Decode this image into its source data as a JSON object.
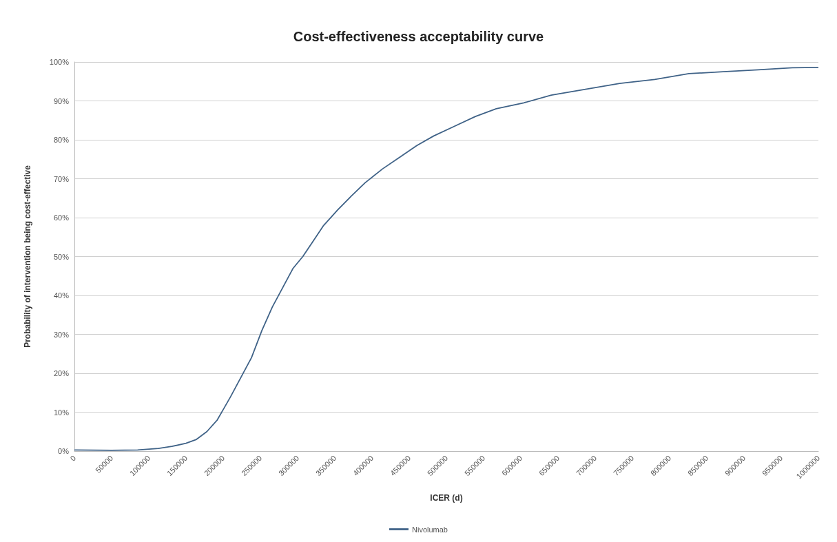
{
  "chart_data": {
    "type": "line",
    "title": "Cost-effectiveness acceptability curve",
    "xlabel": "ICER (d)",
    "ylabel": "Probability of intervention being cost-effective",
    "x": [
      0,
      50000,
      85000,
      113000,
      131000,
      150000,
      164000,
      178000,
      192000,
      201000,
      210000,
      224000,
      238000,
      252000,
      266000,
      280000,
      294000,
      307000,
      321000,
      335000,
      354000,
      372000,
      391000,
      414000,
      437000,
      460000,
      483000,
      511000,
      539000,
      567000,
      604000,
      641000,
      687000,
      733000,
      780000,
      826000,
      872000,
      919000,
      965000,
      1000000
    ],
    "series": [
      {
        "name": "Nivolumab",
        "color": "#3f6287",
        "values": [
          0.3,
          0.2,
          0.3,
          0.7,
          1.2,
          2,
          3,
          5,
          8,
          11,
          14,
          19,
          24,
          31,
          37,
          42,
          47,
          50,
          54,
          58,
          62,
          65.5,
          69,
          72.5,
          75.5,
          78.5,
          81,
          83.5,
          86,
          88,
          89.5,
          91.5,
          93,
          94.5,
          95.5,
          97,
          97.5,
          98,
          98.5,
          98.6
        ]
      }
    ],
    "xlim": [
      0,
      1000000
    ],
    "xticks": [
      0,
      50000,
      100000,
      150000,
      200000,
      250000,
      300000,
      350000,
      400000,
      450000,
      500000,
      550000,
      600000,
      650000,
      700000,
      750000,
      800000,
      850000,
      900000,
      950000,
      1000000
    ],
    "ylim": [
      0,
      100
    ],
    "yticks": [
      {
        "value": 0,
        "label": "0%"
      },
      {
        "value": 10,
        "label": "10%"
      },
      {
        "value": 20,
        "label": "20%"
      },
      {
        "value": 30,
        "label": "30%"
      },
      {
        "value": 40,
        "label": "40%"
      },
      {
        "value": 50,
        "label": "50%"
      },
      {
        "value": 60,
        "label": "60%"
      },
      {
        "value": 70,
        "label": "70%"
      },
      {
        "value": 80,
        "label": "80%"
      },
      {
        "value": 90,
        "label": "90%"
      },
      {
        "value": 100,
        "label": "100%"
      }
    ],
    "grid": "y",
    "legend": "bottom",
    "marker": "none",
    "line_style": "solid"
  }
}
